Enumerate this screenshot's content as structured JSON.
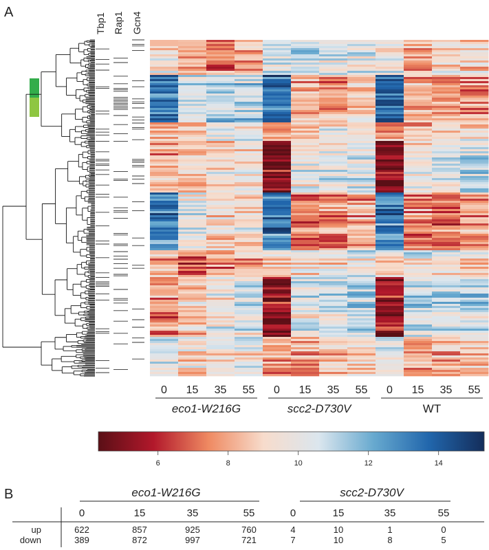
{
  "panel_a": {
    "label": "A",
    "tracks": [
      "Tbp1",
      "Rap1",
      "Gcn4"
    ],
    "heatmap": {
      "groups": [
        {
          "name": "eco1-W216G",
          "italic": true,
          "columns": [
            "0",
            "15",
            "35",
            "55"
          ]
        },
        {
          "name": "scc2-D730V",
          "italic": true,
          "columns": [
            "0",
            "15",
            "35",
            "55"
          ]
        },
        {
          "name": "WT",
          "italic": false,
          "columns": [
            "0",
            "15",
            "35",
            "55"
          ]
        }
      ],
      "colorscale": [
        "#5a0f16",
        "#b2182b",
        "#ef8a62",
        "#f7dccc",
        "#dbe6ee",
        "#67a9cf",
        "#2166ac",
        "#142d5a"
      ]
    },
    "cluster_marks": [
      {
        "color": "#33ad4b"
      },
      {
        "color": "#8ec641"
      }
    ]
  },
  "colorbar": {
    "min": 4.3,
    "max": 15.3,
    "ticks": [
      6,
      8,
      10,
      12,
      14
    ],
    "tick_labels": [
      "6",
      "8",
      "10",
      "12",
      "14"
    ]
  },
  "panel_b": {
    "label": "B",
    "groups": [
      {
        "name": "eco1-W216G",
        "columns": [
          "0",
          "15",
          "35",
          "55"
        ]
      },
      {
        "name": "scc2-D730V",
        "columns": [
          "0",
          "15",
          "35",
          "55"
        ]
      }
    ],
    "rows": [
      {
        "label": "up",
        "values": [
          "622",
          "857",
          "925",
          "760",
          "4",
          "10",
          "1",
          "0"
        ]
      },
      {
        "label": "down",
        "values": [
          "389",
          "872",
          "997",
          "721",
          "7",
          "10",
          "8",
          "5"
        ]
      }
    ]
  }
}
